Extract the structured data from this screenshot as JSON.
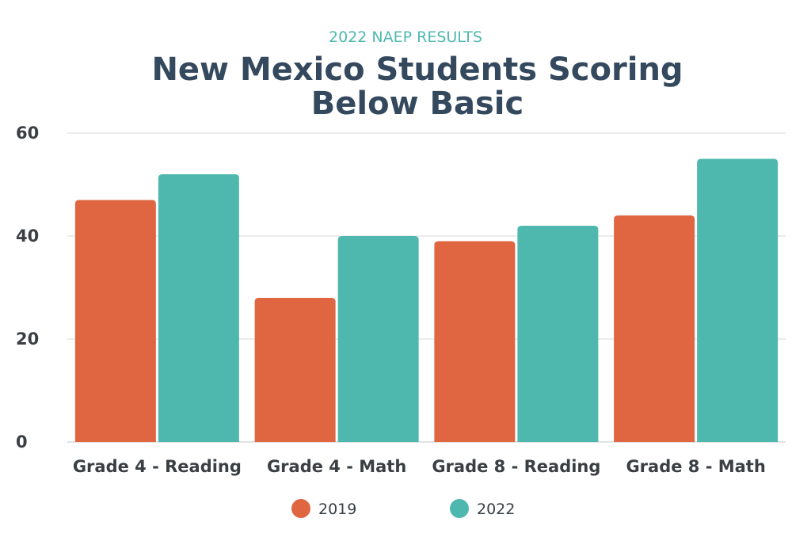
{
  "chart_data": {
    "type": "bar",
    "subtitle": "2022 NAEP RESULTS",
    "title_lines": [
      "New Mexico Students Scoring",
      "Below Basic"
    ],
    "categories": [
      "Grade 4 - Reading",
      "Grade 4 - Math",
      "Grade 8 - Reading",
      "Grade 8 - Math"
    ],
    "series": [
      {
        "name": "2019",
        "color": "#e06641",
        "values": [
          47,
          28,
          39,
          44
        ]
      },
      {
        "name": "2022",
        "color": "#4fb8ae",
        "values": [
          52,
          40,
          42,
          55
        ]
      }
    ],
    "ylim": [
      0,
      60
    ],
    "yticks": [
      0,
      20,
      40,
      60
    ],
    "grid": true,
    "legend_position": "bottom-center",
    "colors": {
      "title": "#34495e",
      "subtitle": "#4fb8ae",
      "axis_text": "#3a3f44",
      "grid": "#e6e6e6"
    }
  }
}
